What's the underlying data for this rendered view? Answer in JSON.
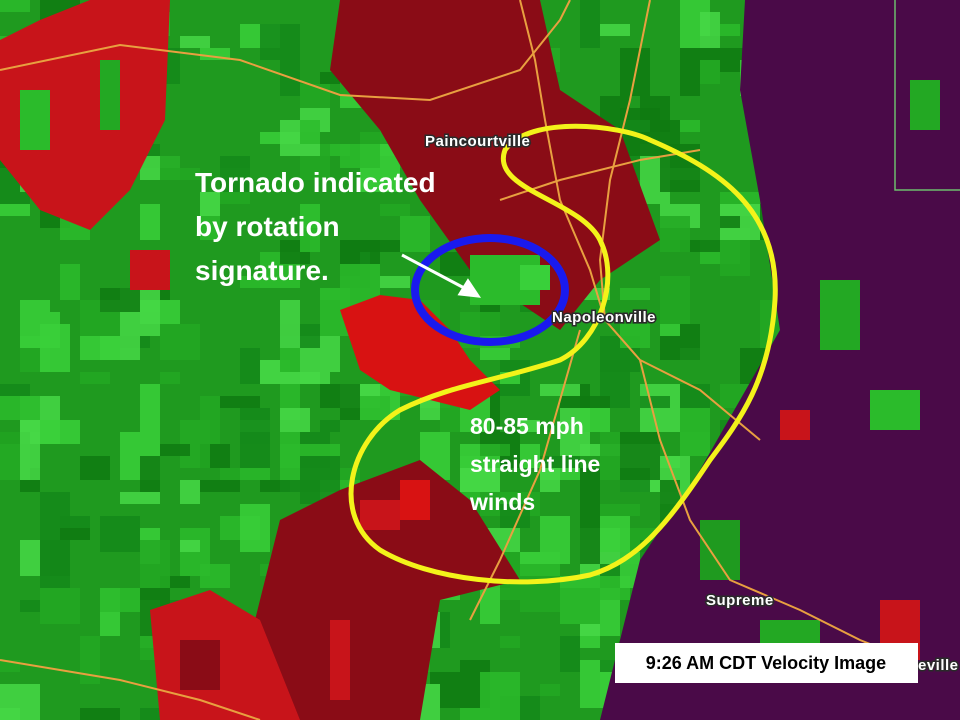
{
  "annotations": {
    "tornado": [
      "Tornado indicated",
      "by rotation",
      "signature."
    ],
    "winds": [
      "80-85 mph",
      "straight line",
      "winds"
    ]
  },
  "places": [
    "Paincourtville",
    "Napoleonville",
    "Supreme",
    "eville"
  ],
  "caption": "9:26 AM CDT Velocity Image"
}
